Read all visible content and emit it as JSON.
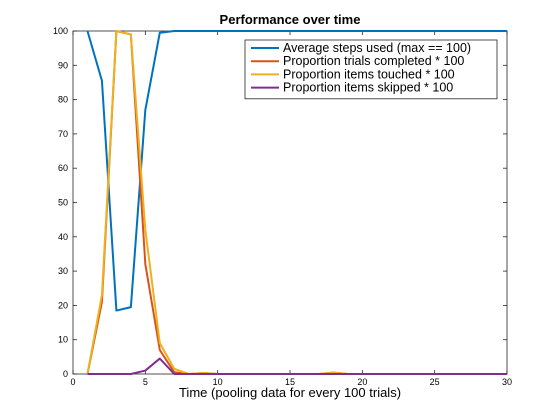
{
  "chart_data": {
    "type": "line",
    "title": "Performance over time",
    "xlabel": "Time (pooling data for every 100 trials)",
    "ylabel": "",
    "xlim": [
      0,
      30
    ],
    "ylim": [
      0,
      100
    ],
    "xticks": [
      0,
      5,
      10,
      15,
      20,
      25,
      30
    ],
    "yticks": [
      0,
      10,
      20,
      30,
      40,
      50,
      60,
      70,
      80,
      90,
      100
    ],
    "grid": false,
    "legend_position": "top-right",
    "x": [
      1,
      2,
      3,
      4,
      5,
      6,
      7,
      8,
      9,
      10,
      11,
      12,
      13,
      14,
      15,
      16,
      17,
      18,
      19,
      20,
      21,
      22,
      23,
      24,
      25,
      26,
      27,
      28,
      29,
      30
    ],
    "series": [
      {
        "name": "Average steps used (max == 100)",
        "color": "#0072BD",
        "values": [
          100,
          85.5,
          18.5,
          19.5,
          77,
          99.5,
          100,
          100,
          100,
          100,
          100,
          100,
          100,
          100,
          100,
          100,
          100,
          100,
          100,
          100,
          100,
          100,
          100,
          100,
          100,
          100,
          100,
          100,
          100,
          100
        ]
      },
      {
        "name": "Proportion trials completed * 100",
        "color": "#D95319",
        "values": [
          0,
          21,
          100,
          99,
          32,
          7,
          0.5,
          0,
          0.3,
          0,
          0,
          0,
          0,
          0,
          0,
          0,
          0,
          0.4,
          0,
          0,
          0,
          0,
          0,
          0,
          0,
          0,
          0,
          0,
          0,
          0
        ]
      },
      {
        "name": "Proportion items touched * 100",
        "color": "#EDB120",
        "values": [
          0,
          23,
          100,
          99,
          42,
          9,
          1.5,
          0,
          0.3,
          0,
          0,
          0,
          0,
          0,
          0,
          0,
          0,
          0.4,
          0,
          0,
          0,
          0,
          0,
          0,
          0,
          0,
          0,
          0,
          0,
          0
        ]
      },
      {
        "name": "Proportion items skipped * 100",
        "color": "#7E2F8E",
        "values": [
          0,
          0,
          0,
          0,
          1,
          4.5,
          0,
          0,
          0,
          0,
          0,
          0,
          0,
          0,
          0,
          0,
          0,
          0,
          0,
          0,
          0,
          0,
          0,
          0,
          0,
          0,
          0,
          0,
          0,
          0
        ]
      }
    ]
  }
}
